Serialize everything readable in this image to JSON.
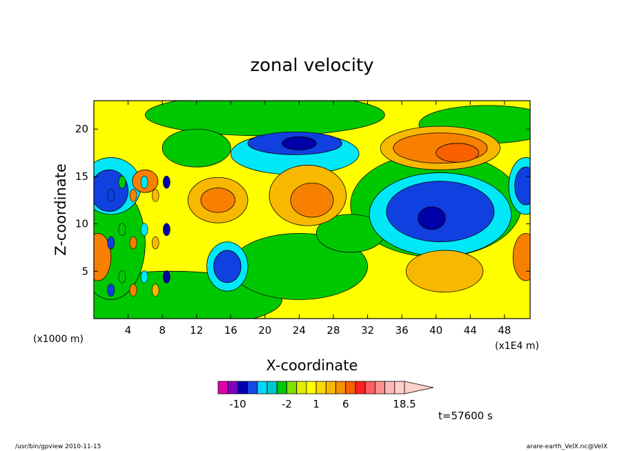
{
  "chart_data": {
    "type": "heatmap",
    "subtype": "filled-contour",
    "title": "zonal velocity",
    "xlabel": "X-coordinate",
    "ylabel": "Z-coordinate",
    "x_unit_left": "(x1000 m)",
    "x_unit_right": "(x1E4 m)",
    "xlim": [
      0,
      51
    ],
    "ylim": [
      0,
      23
    ],
    "x_ticks": [
      4,
      8,
      12,
      16,
      20,
      24,
      28,
      32,
      36,
      40,
      44,
      48
    ],
    "y_ticks": [
      5,
      10,
      15,
      20
    ],
    "time_label": "t=57600 s",
    "colorbar": {
      "levels": [
        -14,
        -12,
        -10,
        -8,
        -6,
        -4,
        -3,
        -2,
        -1,
        0,
        1,
        2,
        4,
        6,
        8,
        10,
        12,
        14,
        16,
        18.5
      ],
      "colors": [
        "#e000a8",
        "#8000c0",
        "#0000b0",
        "#1848e8",
        "#00d8f8",
        "#00c8c8",
        "#00c800",
        "#80e000",
        "#e0f000",
        "#ffff00",
        "#f8d800",
        "#f8b800",
        "#f89000",
        "#f86000",
        "#ff2020",
        "#ff6060",
        "#ff9090",
        "#ffb8b8",
        "#ffd0c8"
      ],
      "labels": [
        {
          "text": "-10",
          "value": -10
        },
        {
          "text": "-2",
          "value": -2
        },
        {
          "text": "1",
          "value": 1
        },
        {
          "text": "6",
          "value": 6
        },
        {
          "text": "18.5",
          "value": 18.5
        }
      ]
    },
    "regions": [
      {
        "name": "blue-core-large",
        "cx": 40.5,
        "cz": 11.3,
        "rx": 6.3,
        "rz": 3.2,
        "level": "blue"
      },
      {
        "name": "blue-core-small",
        "cx": 15.6,
        "cz": 5.5,
        "rx": 1.6,
        "rz": 1.7,
        "level": "blue"
      },
      {
        "name": "blue-band-upper",
        "cx": 23.5,
        "cz": 18.5,
        "rx": 5.5,
        "rz": 1.2,
        "level": "blue"
      },
      {
        "name": "orange-upper-right",
        "cx": 40.5,
        "cz": 18.0,
        "rx": 5.5,
        "rz": 1.6,
        "level": "orange"
      },
      {
        "name": "orange-mid",
        "cx": 25.0,
        "cz": 13.0,
        "rx": 3.5,
        "rz": 2.2,
        "level": "orange"
      },
      {
        "name": "orange-right-edge",
        "cx": 50.5,
        "cz": 6.5,
        "rx": 1.5,
        "rz": 2.5,
        "level": "orange"
      },
      {
        "name": "orange-left-edge",
        "cx": 0.5,
        "cz": 6.5,
        "rx": 1.5,
        "rz": 2.5,
        "level": "orange"
      }
    ]
  },
  "footer": {
    "left": "/usr/bin/gpview  2010-11-15",
    "right": "arare-earth_VelX.nc@VelX"
  }
}
